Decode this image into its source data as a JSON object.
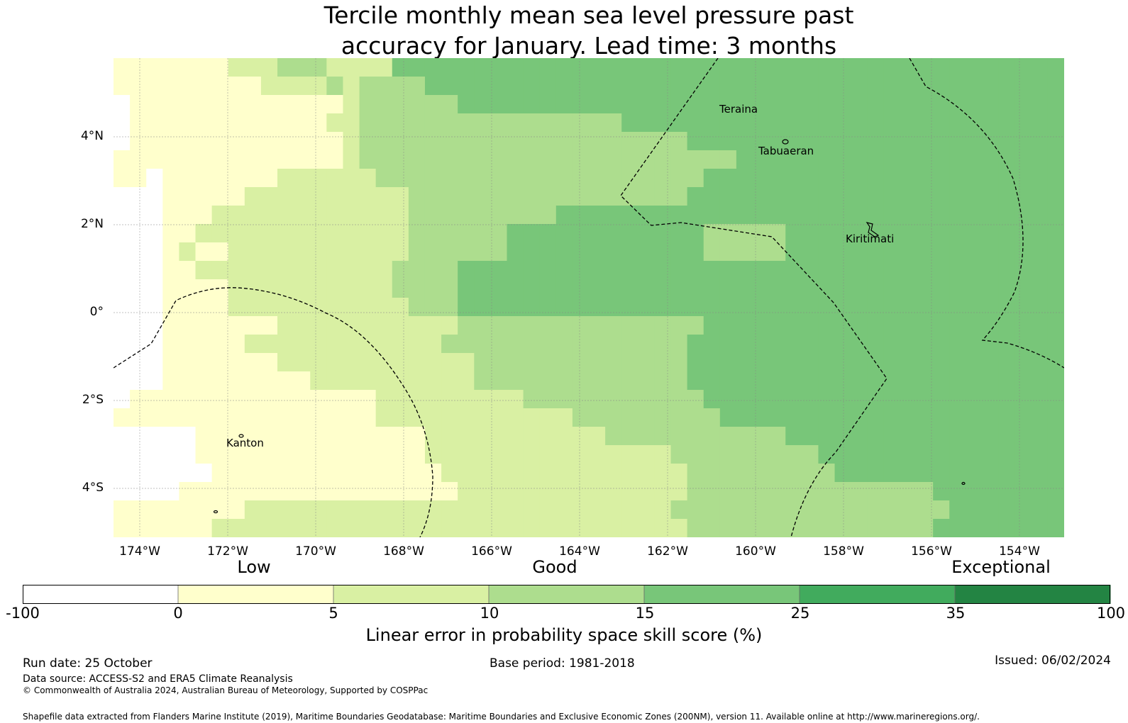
{
  "title_line1": "Tercile monthly mean sea level pressure past",
  "title_line2": "accuracy for January. Lead time: 3 months",
  "lat_labels": [
    "4°N",
    "2°N",
    "0°",
    "2°S",
    "4°S"
  ],
  "lon_labels": [
    "174°W",
    "172°W",
    "170°W",
    "168°W",
    "166°W",
    "164°W",
    "162°W",
    "160°W",
    "158°W",
    "156°W",
    "154°W"
  ],
  "places": {
    "teraina": "Teraina",
    "tabuaeran": "Tabuaeran",
    "kiritimati": "Kiritimati",
    "kanton": "Kanton"
  },
  "colorbar": {
    "categories": {
      "low": "Low",
      "good": "Good",
      "exceptional": "Exceptional"
    },
    "ticks": [
      "-100",
      "0",
      "5",
      "10",
      "15",
      "25",
      "35",
      "100"
    ],
    "colors": [
      "#ffffff",
      "#ffffcc",
      "#d9f0a3",
      "#addd8e",
      "#78c679",
      "#41ab5d",
      "#238443"
    ],
    "label": "Linear error in probability space skill score (%)"
  },
  "footer": {
    "run_date": "Run date: 25 October",
    "base_period": "Base period: 1981-2018",
    "issued": "Issued: 06/02/2024",
    "data_source": "Data source: ACCESS-S2 and ERA5 Climate Reanalysis",
    "copyright": "© Commonwealth of Australia 2024, Australian Bureau of Meteorology, Supported by COSPPac",
    "shapefile": "Shapefile data extracted from Flanders Marine Institute (2019), Maritime Boundaries Geodatabase: Maritime Boundaries and Exclusive Economic Zones (200NM), version 11. Available online at http://www.marineregions.org/."
  },
  "map_grid": {
    "description_levels": "0=below 0 (white), 1=0-5, 2=5-10, 3=10-15, 4=15-25",
    "rows": [
      "1111111222333222244444444444444444444444444444444444444444",
      "1111111112222323333444444444444444444444444444444444444444",
      "0111111111111123333334444444444444444444444444444444444444",
      "0111111111111223333333333333333444444444444444444444444444",
      "0111111111111123333333333333333333344444444444444444444444",
      "1111111111111123333333333333333333333344444444444444444444",
      "1101111111222222333333333333333333334444444444444444444444",
      "0001111122222222223333333333333333344444444444444444444444",
      "0001112222222222223333333334444444444444444444444444444444",
      "0001122222222222223333334444444444443333344444444444444444",
      "0001211222222222223333334444444444443333344444444444444444",
      "0001122222222222233334444444444444444444444444444444444444",
      "0001111222222222233334444444444444444444444444444444444444",
      "0001111222222222223334444444444444444444444444444444444444",
      "0001111111222222222223333333333333334444444444444444444444",
      "0001111122222222222233333333333333344444444444444444444444",
      "0001111111222222222222333333333333344444444444444444444444",
      "0001111111112222222222333333333333344444444444444444444444",
      "0111111111111111222222222333333333334444444444444444444444",
      "1111111111111111222222222222333333333444444444444444444444",
      "0000011111111111111222222222223333333333344444444444444444",
      "0000011111111111111222222222222222333333333444444444444444",
      "0000001111111111111122222222222222233333333344444444444444",
      "0000111111111111111112222222222222233333333333333344444444",
      "1111111122222222222222222222222222333333333333333334444444",
      "1111112222222222222222222222222222233333333333333344444444"
    ]
  }
}
